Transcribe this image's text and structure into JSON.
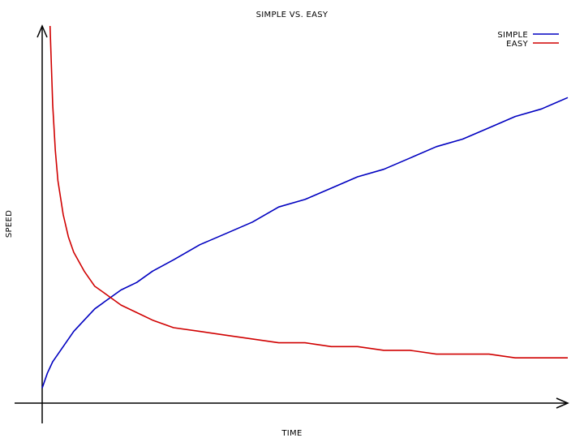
{
  "chart_data": {
    "type": "line",
    "title": "SIMPLE VS. EASY",
    "xlabel": "TIME",
    "ylabel": "SPEED",
    "axes_arrows": true,
    "ticks": "none",
    "grid": false,
    "legend_position": "top-right",
    "xlim": [
      0,
      1
    ],
    "ylim": [
      0,
      1
    ],
    "style": "hand-drawn (xkcd)",
    "series": [
      {
        "name": "SIMPLE",
        "color": "#0000c0",
        "x": [
          0.0,
          0.01,
          0.02,
          0.04,
          0.06,
          0.08,
          0.1,
          0.12,
          0.15,
          0.18,
          0.21,
          0.25,
          0.3,
          0.35,
          0.4,
          0.45,
          0.5,
          0.55,
          0.6,
          0.65,
          0.7,
          0.75,
          0.8,
          0.85,
          0.9,
          0.95,
          1.0
        ],
        "y": [
          0.04,
          0.08,
          0.11,
          0.15,
          0.19,
          0.22,
          0.25,
          0.27,
          0.3,
          0.32,
          0.35,
          0.38,
          0.42,
          0.45,
          0.48,
          0.52,
          0.54,
          0.57,
          0.6,
          0.62,
          0.65,
          0.68,
          0.7,
          0.73,
          0.76,
          0.78,
          0.81
        ]
      },
      {
        "name": "EASY",
        "color": "#d00000",
        "x": [
          0.015,
          0.02,
          0.025,
          0.03,
          0.04,
          0.05,
          0.06,
          0.08,
          0.1,
          0.12,
          0.15,
          0.18,
          0.21,
          0.25,
          0.3,
          0.35,
          0.4,
          0.45,
          0.5,
          0.55,
          0.6,
          0.65,
          0.7,
          0.75,
          0.8,
          0.85,
          0.9,
          0.95,
          1.0
        ],
        "y": [
          1.0,
          0.79,
          0.67,
          0.59,
          0.5,
          0.44,
          0.4,
          0.35,
          0.31,
          0.29,
          0.26,
          0.24,
          0.22,
          0.2,
          0.19,
          0.18,
          0.17,
          0.16,
          0.16,
          0.15,
          0.15,
          0.14,
          0.14,
          0.13,
          0.13,
          0.13,
          0.12,
          0.12,
          0.12
        ]
      }
    ]
  }
}
